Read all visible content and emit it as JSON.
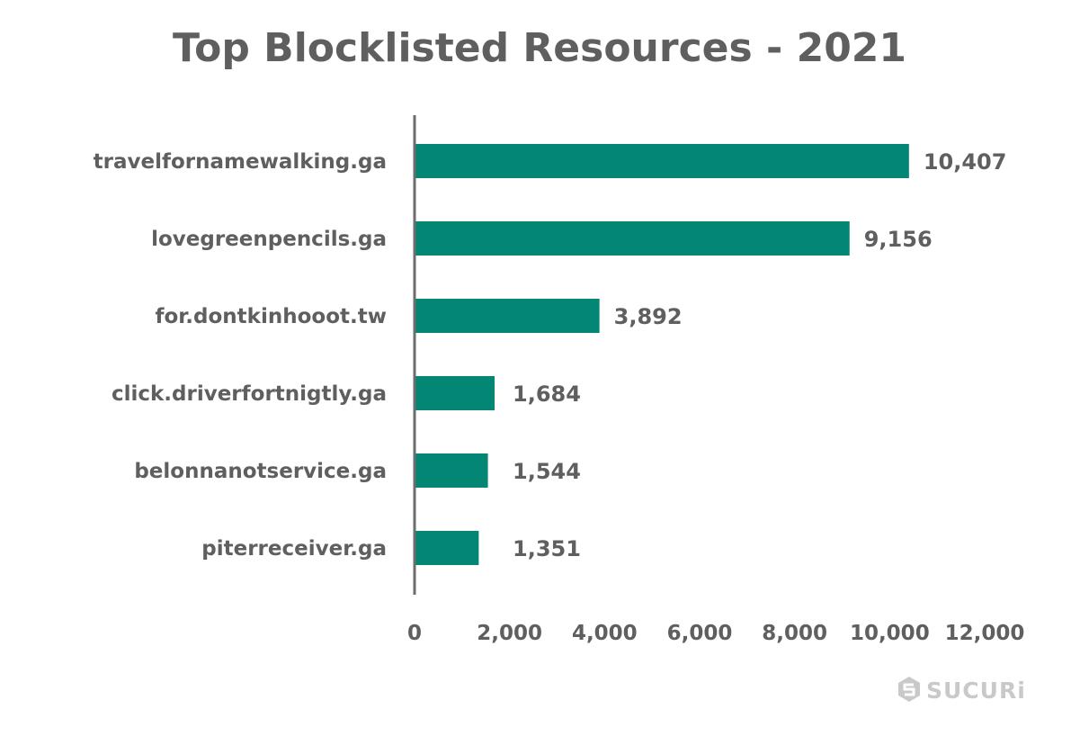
{
  "chart_data": {
    "type": "bar",
    "orientation": "horizontal",
    "title": "Top Blocklisted Resources - 2021",
    "categories": [
      "travelfornamewalking.ga",
      "lovegreenpencils.ga",
      "for.dontkinhooot.tw",
      "click.driverfortnigtly.ga",
      "belonnanotservice.ga",
      "piterreceiver.ga"
    ],
    "values": [
      10407,
      9156,
      3892,
      1684,
      1544,
      1351
    ],
    "value_labels": [
      "10,407",
      "9,156",
      "3,892",
      "1,684",
      "1,544",
      "1,351"
    ],
    "xlim": [
      0,
      12000
    ],
    "x_ticks": [
      0,
      2000,
      4000,
      6000,
      8000,
      10000,
      12000
    ],
    "x_tick_labels": [
      "0",
      "2,000",
      "4,000",
      "6,000",
      "8,000",
      "10,000",
      "12,000"
    ],
    "xlabel": "",
    "ylabel": "",
    "grid": false,
    "legend": "none",
    "bar_color": "#038673",
    "axis_color": "#6d6d6d",
    "text_color": "#5f5f5f"
  },
  "brand": {
    "name": "SUCURi",
    "icon": "sucuri-logo-icon",
    "color": "#c9c9c9"
  }
}
